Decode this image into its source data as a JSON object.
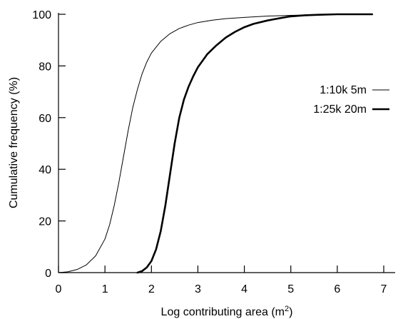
{
  "chart_data": {
    "type": "line",
    "xlabel": "Log contributing area (m",
    "xlabel_sup": "2",
    "xlabel_close": ")",
    "ylabel": "Cumulative frequency (%)",
    "xlim": [
      0,
      7
    ],
    "ylim": [
      0,
      100
    ],
    "xticks": [
      "0",
      "1",
      "2",
      "3",
      "4",
      "5",
      "6",
      "7"
    ],
    "yticks": [
      "0",
      "20",
      "40",
      "60",
      "80",
      "100"
    ],
    "grid": false,
    "legend_position": "right",
    "series": [
      {
        "name": "1:10k 5m",
        "line_style": "thin",
        "x": [
          0.0,
          0.2,
          0.4,
          0.6,
          0.8,
          1.0,
          1.1,
          1.2,
          1.3,
          1.4,
          1.5,
          1.6,
          1.7,
          1.8,
          1.9,
          2.0,
          2.2,
          2.4,
          2.6,
          2.8,
          3.0,
          3.3,
          3.6,
          4.0,
          4.5,
          5.0,
          5.5,
          6.0,
          6.5,
          6.75
        ],
        "y": [
          0.0,
          0.3,
          1.2,
          3.0,
          6.5,
          13.0,
          18.5,
          26.0,
          35.0,
          45.0,
          55.0,
          64.0,
          71.0,
          77.0,
          81.5,
          85.0,
          89.5,
          92.5,
          94.5,
          95.8,
          96.8,
          97.7,
          98.3,
          98.8,
          99.3,
          99.6,
          99.8,
          99.9,
          100.0,
          100.0
        ]
      },
      {
        "name": "1:25k 20m",
        "line_style": "thick",
        "x": [
          1.7,
          1.8,
          1.9,
          2.0,
          2.1,
          2.2,
          2.3,
          2.4,
          2.5,
          2.6,
          2.7,
          2.8,
          2.9,
          3.0,
          3.2,
          3.4,
          3.6,
          3.8,
          4.0,
          4.2,
          4.5,
          4.8,
          5.0,
          5.3,
          5.6,
          6.0,
          6.3,
          6.75
        ],
        "y": [
          0.0,
          0.6,
          2.0,
          4.5,
          9.0,
          16.0,
          26.0,
          38.0,
          50.0,
          60.0,
          67.0,
          72.0,
          76.0,
          79.5,
          84.5,
          88.0,
          91.0,
          93.2,
          95.0,
          96.3,
          97.6,
          98.6,
          99.2,
          99.6,
          99.8,
          100.0,
          100.0,
          100.0
        ]
      }
    ]
  }
}
